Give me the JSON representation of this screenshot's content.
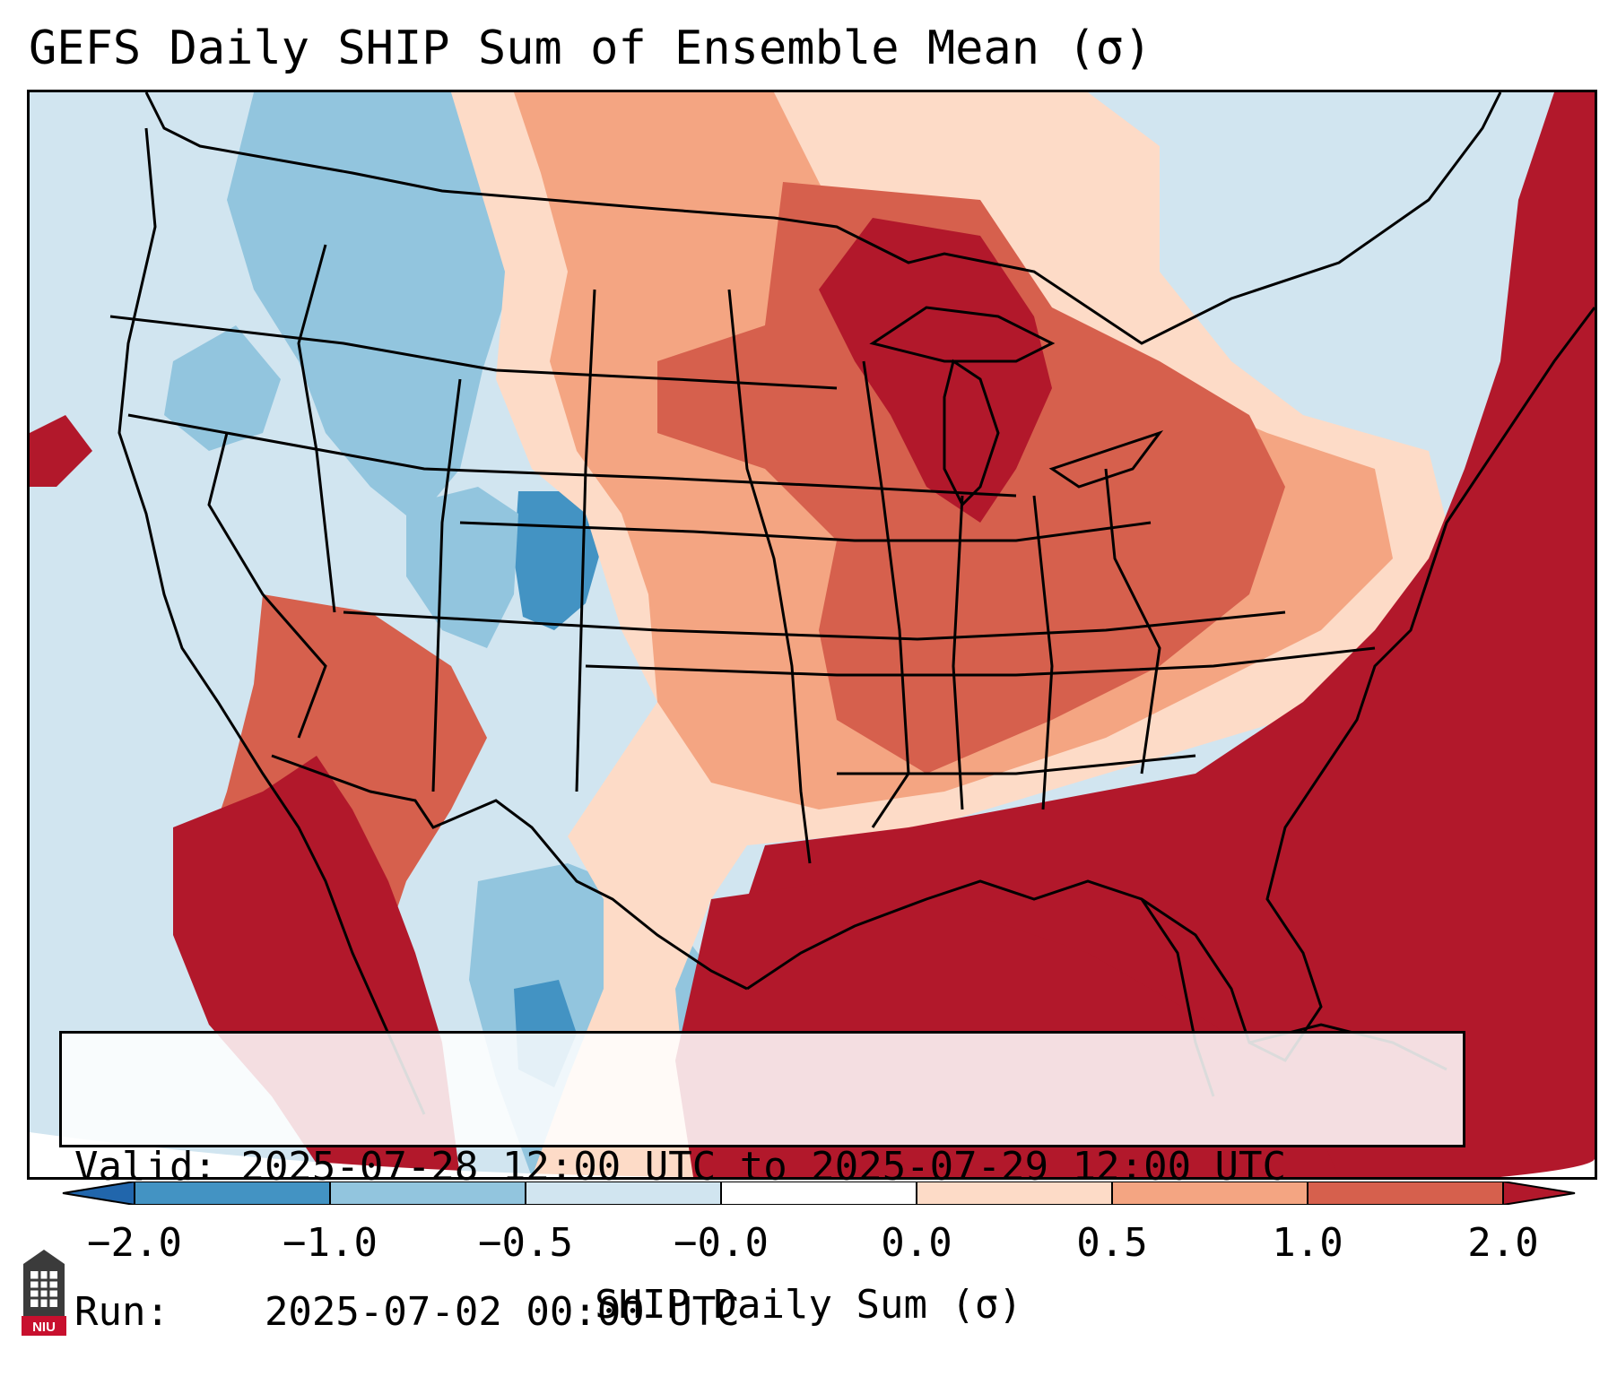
{
  "title": "GEFS Daily SHIP Sum of Ensemble Mean (σ)",
  "map": {
    "region": "Contiguous United States",
    "colors": {
      "neg_2": "#2166ac",
      "neg_1": "#4393c3",
      "neg_0_5": "#92c5de",
      "neg_0": "#d1e5f0",
      "pos_0": "#fddbc7",
      "pos_0_5": "#f4a582",
      "pos_1": "#d6604d",
      "pos_2": "#b2182b",
      "outside": "#ffffff",
      "borders": "#000000"
    }
  },
  "info": {
    "valid_label": "Valid:",
    "valid_value": "2025-07-28 12:00 UTC to 2025-07-29 12:00 UTC",
    "run_label": "Run:",
    "run_value": "2025-07-02 00:00 UTC"
  },
  "colorbar": {
    "label": "SHIP Daily Sum (σ)",
    "ticks": [
      "−2.0",
      "−1.0",
      "−0.5",
      "−0.0",
      "0.0",
      "0.5",
      "1.0",
      "2.0"
    ],
    "colors": [
      "#4393c3",
      "#92c5de",
      "#d1e5f0",
      "#ffffff",
      "#fddbc7",
      "#f4a582",
      "#d6604d"
    ],
    "extend_low_color": "#2166ac",
    "extend_high_color": "#b2182b"
  },
  "logo": {
    "text": "NIU",
    "icon": "university-tower-icon"
  }
}
